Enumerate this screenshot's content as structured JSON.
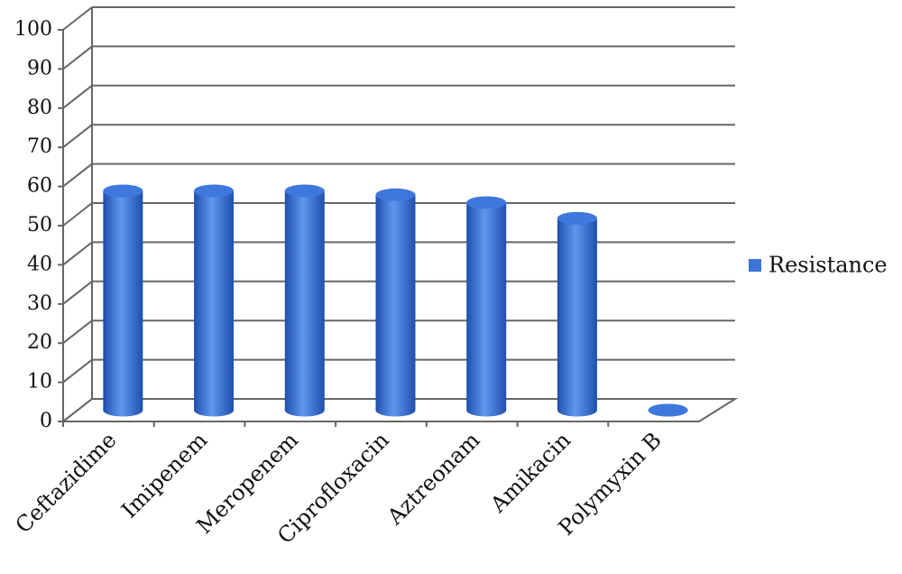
{
  "chart_data": {
    "type": "bar",
    "categories": [
      "Ceftazidime",
      "Imipenem",
      "Meropenem",
      "Ciprofloxacin",
      "Aztreonam",
      "Amikacin",
      "Polymyxin B"
    ],
    "series": [
      {
        "name": "Resistance",
        "color": "#3b74d6",
        "values": [
          56,
          56,
          56,
          55,
          53,
          49,
          0
        ]
      }
    ],
    "ylim": [
      0,
      100
    ],
    "yticks": [
      0,
      10,
      20,
      30,
      40,
      50,
      60,
      70,
      80,
      90,
      100
    ],
    "grid": true,
    "legend": "right"
  }
}
